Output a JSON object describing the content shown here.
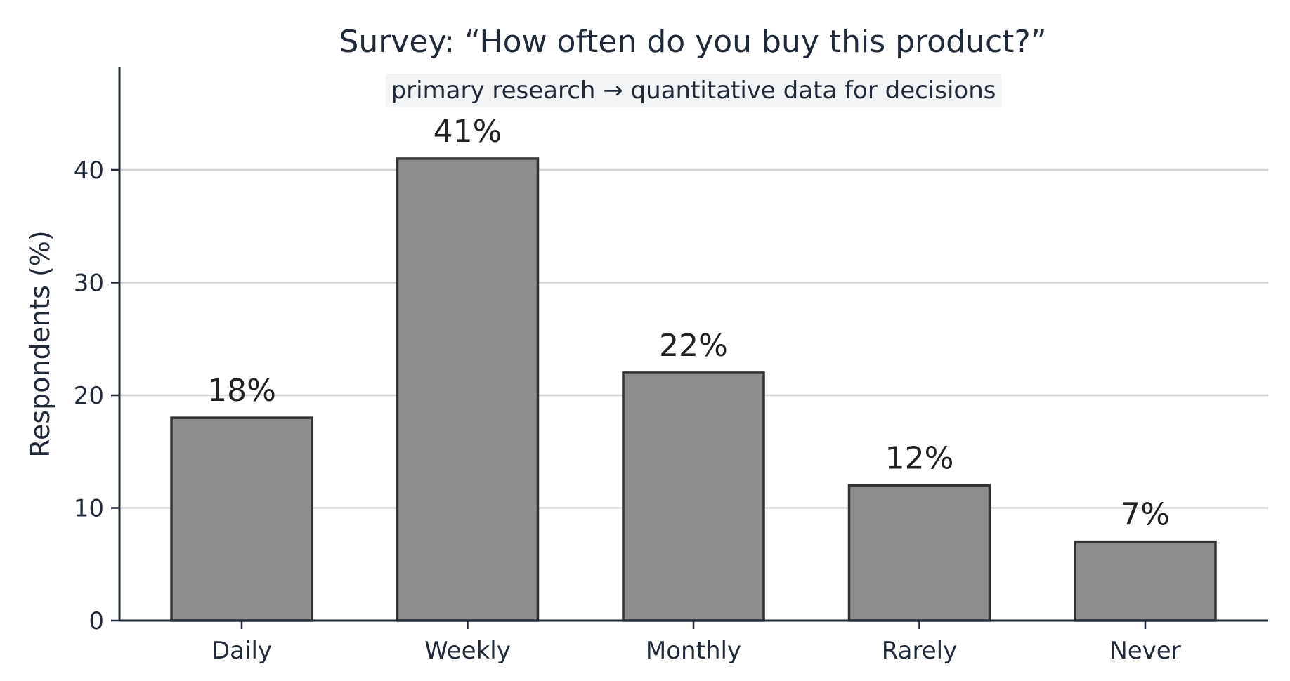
{
  "chart_data": {
    "type": "bar",
    "title": "Survey: “How often do you buy this product?”",
    "subtitle": "primary research → quantitative data for decisions",
    "xlabel": "",
    "ylabel": "Respondents (%)",
    "categories": [
      "Daily",
      "Weekly",
      "Monthly",
      "Rarely",
      "Never"
    ],
    "values": [
      18,
      41,
      22,
      12,
      7
    ],
    "value_labels": [
      "18%",
      "41%",
      "22%",
      "12%",
      "7%"
    ],
    "ylim": [
      0,
      49
    ],
    "yticks": [
      0,
      10,
      20,
      30,
      40
    ],
    "grid": "horizontal",
    "legend": "none",
    "colors": {
      "bar_fill": "#8c8c8c",
      "bar_edge": "#333333",
      "grid": "#d4d4d4",
      "axis": "#1f2937"
    }
  }
}
